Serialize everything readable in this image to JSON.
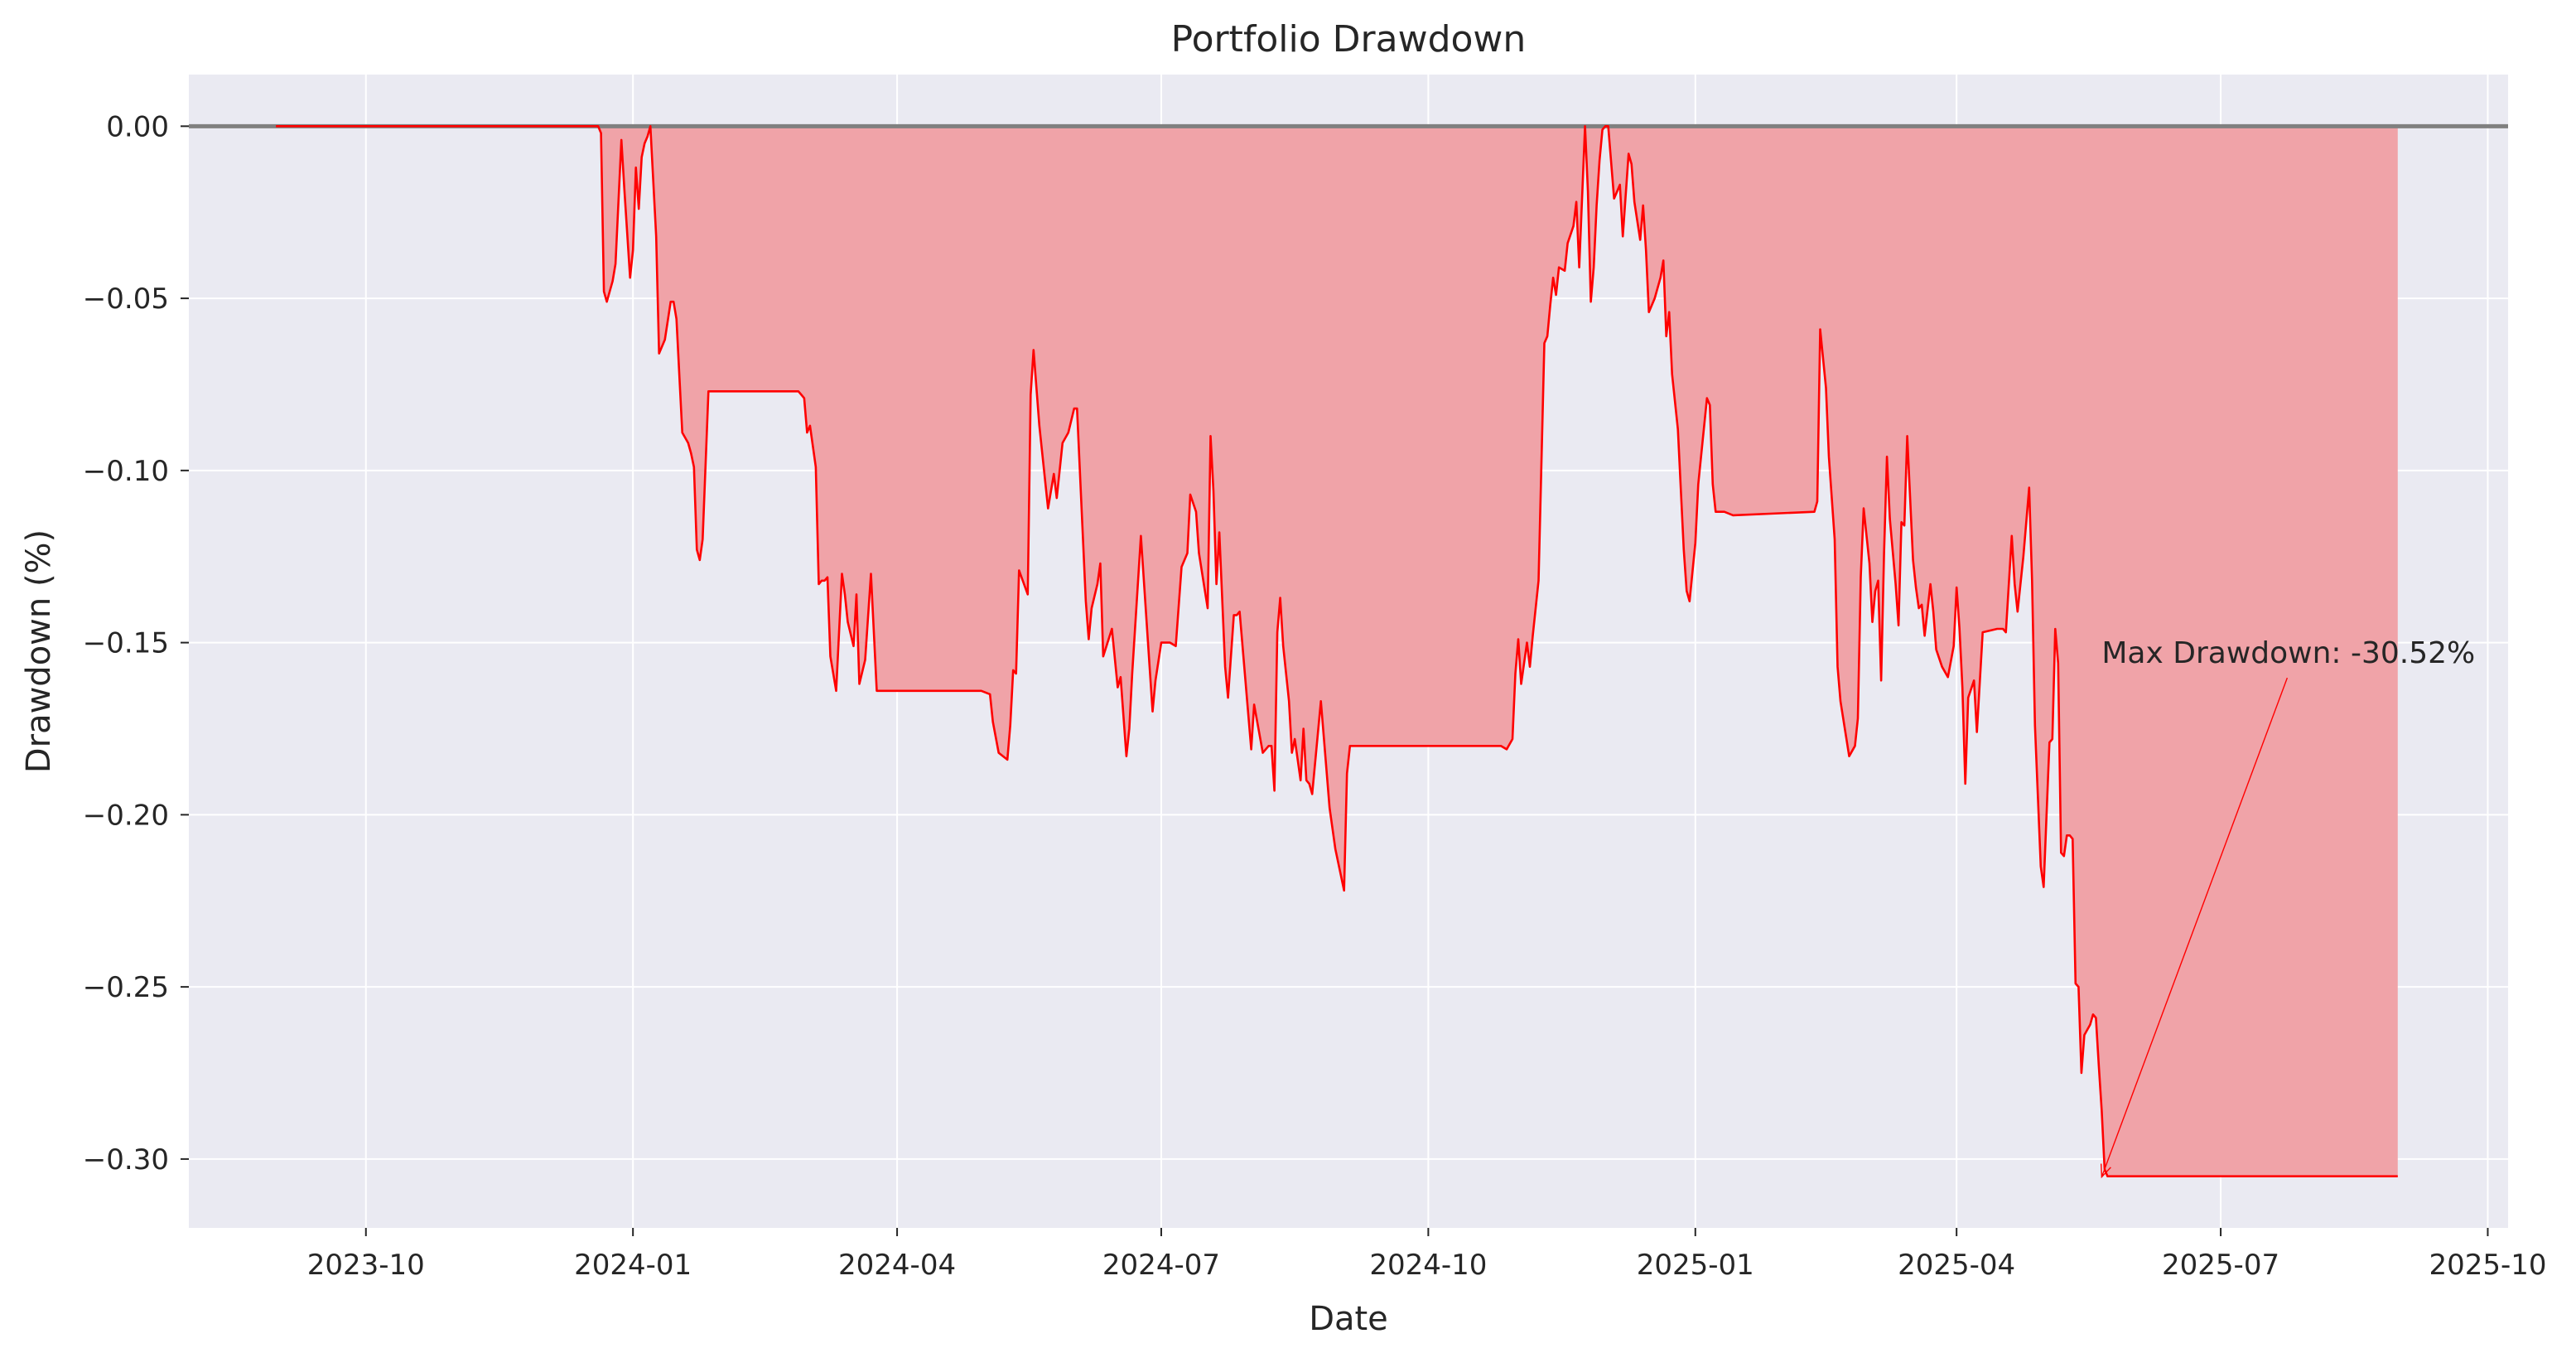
{
  "chart_data": {
    "type": "area",
    "title": "Portfolio Drawdown",
    "xlabel": "Date",
    "ylabel": "Drawdown (%)",
    "x_ticks": [
      "2023-10",
      "2024-01",
      "2024-04",
      "2024-07",
      "2024-10",
      "2025-01",
      "2025-04",
      "2025-07",
      "2025-10"
    ],
    "y_ticks": [
      "0.00",
      "−0.05",
      "−0.10",
      "−0.15",
      "−0.20",
      "−0.25",
      "−0.30"
    ],
    "y_tick_values": [
      0.0,
      -0.05,
      -0.1,
      -0.15,
      -0.2,
      -0.25,
      -0.3
    ],
    "xlim": [
      "2023-08-01",
      "2025-10-08"
    ],
    "ylim": [
      -0.32,
      0.015
    ],
    "grid": true,
    "zero_line": 0.0,
    "colors": {
      "line": "#ff0000",
      "fill": "#f0a3a8",
      "background": "#eaeaf2",
      "zero_line": "#808080"
    },
    "series": [
      {
        "x": [
          "2023-08-31",
          "2023-12-20",
          "2023-12-21",
          "2023-12-22",
          "2023-12-23",
          "2023-12-25",
          "2023-12-26",
          "2023-12-28",
          "2023-12-29",
          "2023-12-31",
          "2024-01-01",
          "2024-01-02",
          "2024-01-03",
          "2024-01-04",
          "2024-01-05",
          "2024-01-06",
          "2024-01-07",
          "2024-01-08",
          "2024-01-09",
          "2024-01-10",
          "2024-01-11",
          "2024-01-12",
          "2024-01-14",
          "2024-01-15",
          "2024-01-16",
          "2024-01-18",
          "2024-01-20",
          "2024-01-21",
          "2024-01-22",
          "2024-01-23",
          "2024-01-24",
          "2024-01-25",
          "2024-01-27",
          "2024-02-01",
          "2024-02-25",
          "2024-02-27",
          "2024-02-28",
          "2024-02-29",
          "2024-03-01",
          "2024-03-02",
          "2024-03-04",
          "2024-03-05",
          "2024-03-06",
          "2024-03-07",
          "2024-03-08",
          "2024-03-09",
          "2024-03-11",
          "2024-03-13",
          "2024-03-14",
          "2024-03-15",
          "2024-03-17",
          "2024-03-18",
          "2024-03-19",
          "2024-03-21",
          "2024-03-23",
          "2024-03-25",
          "2024-04-29",
          "2024-04-30",
          "2024-05-03",
          "2024-05-04",
          "2024-05-06",
          "2024-05-09",
          "2024-05-10",
          "2024-05-11",
          "2024-05-12",
          "2024-05-13",
          "2024-05-16",
          "2024-05-17",
          "2024-05-18",
          "2024-05-20",
          "2024-05-23",
          "2024-05-25",
          "2024-05-26",
          "2024-05-28",
          "2024-05-30",
          "2024-06-01",
          "2024-06-02",
          "2024-06-05",
          "2024-06-06",
          "2024-06-07",
          "2024-06-09",
          "2024-06-10",
          "2024-06-11",
          "2024-06-14",
          "2024-06-16",
          "2024-06-17",
          "2024-06-19",
          "2024-06-20",
          "2024-06-21",
          "2024-06-24",
          "2024-06-28",
          "2024-06-29",
          "2024-07-01",
          "2024-07-03",
          "2024-07-04",
          "2024-07-06",
          "2024-07-08",
          "2024-07-10",
          "2024-07-11",
          "2024-07-13",
          "2024-07-14",
          "2024-07-17",
          "2024-07-18",
          "2024-07-19",
          "2024-07-20",
          "2024-07-21",
          "2024-07-23",
          "2024-07-24",
          "2024-07-26",
          "2024-07-27",
          "2024-07-28",
          "2024-08-01",
          "2024-08-02",
          "2024-08-05",
          "2024-08-06",
          "2024-08-07",
          "2024-08-08",
          "2024-08-09",
          "2024-08-10",
          "2024-08-11",
          "2024-08-12",
          "2024-08-14",
          "2024-08-15",
          "2024-08-16",
          "2024-08-17",
          "2024-08-18",
          "2024-08-19",
          "2024-08-20",
          "2024-08-21",
          "2024-08-22",
          "2024-08-25",
          "2024-08-28",
          "2024-08-30",
          "2024-09-02",
          "2024-09-03",
          "2024-09-04",
          "2024-10-25",
          "2024-10-26",
          "2024-10-28",
          "2024-10-30",
          "2024-10-31",
          "2024-11-01",
          "2024-11-02",
          "2024-11-04",
          "2024-11-05",
          "2024-11-06",
          "2024-11-08",
          "2024-11-10",
          "2024-11-11",
          "2024-11-12",
          "2024-11-13",
          "2024-11-14",
          "2024-11-15",
          "2024-11-17",
          "2024-11-18",
          "2024-11-20",
          "2024-11-21",
          "2024-11-22",
          "2024-11-24",
          "2024-11-25",
          "2024-11-26",
          "2024-11-27",
          "2024-11-28",
          "2024-11-29",
          "2024-11-30",
          "2024-12-01",
          "2024-12-02",
          "2024-12-04",
          "2024-12-06",
          "2024-12-07",
          "2024-12-09",
          "2024-12-10",
          "2024-12-11",
          "2024-12-13",
          "2024-12-14",
          "2024-12-15",
          "2024-12-16",
          "2024-12-18",
          "2024-12-20",
          "2024-12-21",
          "2024-12-22",
          "2024-12-23",
          "2024-12-24",
          "2024-12-26",
          "2024-12-28",
          "2024-12-29",
          "2024-12-30",
          "2025-01-01",
          "2025-01-02",
          "2025-01-05",
          "2025-01-06",
          "2025-01-07",
          "2025-01-08",
          "2025-01-11",
          "2025-01-14",
          "2025-02-11",
          "2025-02-12",
          "2025-02-13",
          "2025-02-15",
          "2025-02-16",
          "2025-02-18",
          "2025-02-19",
          "2025-02-20",
          "2025-02-23",
          "2025-02-25",
          "2025-02-26",
          "2025-02-27",
          "2025-02-28",
          "2025-03-02",
          "2025-03-03",
          "2025-03-04",
          "2025-03-05",
          "2025-03-06",
          "2025-03-07",
          "2025-03-08",
          "2025-03-09",
          "2025-03-11",
          "2025-03-12",
          "2025-03-13",
          "2025-03-14",
          "2025-03-15",
          "2025-03-17",
          "2025-03-18",
          "2025-03-19",
          "2025-03-20",
          "2025-03-21",
          "2025-03-23",
          "2025-03-24",
          "2025-03-25",
          "2025-03-27",
          "2025-03-29",
          "2025-03-31",
          "2025-04-01",
          "2025-04-02",
          "2025-04-03",
          "2025-04-04",
          "2025-04-05",
          "2025-04-07",
          "2025-04-08",
          "2025-04-10",
          "2025-04-15",
          "2025-04-16",
          "2025-04-17",
          "2025-04-18",
          "2025-04-20",
          "2025-04-21",
          "2025-04-22",
          "2025-04-24",
          "2025-04-26",
          "2025-04-27",
          "2025-04-28",
          "2025-04-30",
          "2025-05-01",
          "2025-05-03",
          "2025-05-04",
          "2025-05-05",
          "2025-05-06",
          "2025-05-07",
          "2025-05-08",
          "2025-05-09",
          "2025-05-10",
          "2025-05-11",
          "2025-05-12",
          "2025-05-13",
          "2025-05-14",
          "2025-05-15",
          "2025-05-17",
          "2025-05-18",
          "2025-05-19",
          "2025-05-20",
          "2025-05-21",
          "2025-05-22",
          "2025-05-23",
          "2025-08-31"
        ],
        "y": [
          0.0,
          0.0,
          -0.002,
          -0.048,
          -0.051,
          -0.045,
          -0.04,
          -0.004,
          -0.018,
          -0.044,
          -0.036,
          -0.012,
          -0.024,
          -0.009,
          -0.005,
          -0.003,
          0.0,
          -0.016,
          -0.032,
          -0.066,
          -0.064,
          -0.062,
          -0.051,
          -0.051,
          -0.056,
          -0.089,
          -0.092,
          -0.095,
          -0.099,
          -0.123,
          -0.126,
          -0.12,
          -0.077,
          -0.077,
          -0.077,
          -0.077,
          -0.078,
          -0.079,
          -0.089,
          -0.087,
          -0.099,
          -0.133,
          -0.132,
          -0.132,
          -0.131,
          -0.154,
          -0.164,
          -0.13,
          -0.136,
          -0.144,
          -0.151,
          -0.136,
          -0.162,
          -0.155,
          -0.13,
          -0.164,
          -0.164,
          -0.164,
          -0.165,
          -0.173,
          -0.182,
          -0.184,
          -0.174,
          -0.158,
          -0.159,
          -0.129,
          -0.136,
          -0.078,
          -0.065,
          -0.087,
          -0.111,
          -0.101,
          -0.108,
          -0.092,
          -0.089,
          -0.082,
          -0.082,
          -0.138,
          -0.149,
          -0.14,
          -0.133,
          -0.127,
          -0.154,
          -0.146,
          -0.163,
          -0.16,
          -0.183,
          -0.175,
          -0.159,
          -0.119,
          -0.17,
          -0.161,
          -0.15,
          -0.15,
          -0.15,
          -0.151,
          -0.128,
          -0.124,
          -0.107,
          -0.112,
          -0.124,
          -0.14,
          -0.09,
          -0.106,
          -0.133,
          -0.118,
          -0.157,
          -0.166,
          -0.142,
          -0.142,
          -0.141,
          -0.181,
          -0.168,
          -0.182,
          -0.181,
          -0.18,
          -0.18,
          -0.193,
          -0.147,
          -0.137,
          -0.151,
          -0.167,
          -0.182,
          -0.178,
          -0.184,
          -0.19,
          -0.175,
          -0.19,
          -0.191,
          -0.194,
          -0.167,
          -0.198,
          -0.21,
          -0.222,
          -0.188,
          -0.18,
          -0.18,
          -0.18,
          -0.181,
          -0.178,
          -0.159,
          -0.149,
          -0.162,
          -0.15,
          -0.157,
          -0.148,
          -0.132,
          -0.063,
          -0.061,
          -0.052,
          -0.044,
          -0.049,
          -0.041,
          -0.042,
          -0.034,
          -0.029,
          -0.022,
          -0.041,
          0.0,
          -0.019,
          -0.051,
          -0.041,
          -0.023,
          -0.01,
          -0.001,
          0.0,
          0.0,
          -0.021,
          -0.017,
          -0.032,
          -0.008,
          -0.011,
          -0.022,
          -0.033,
          -0.023,
          -0.036,
          -0.054,
          -0.05,
          -0.044,
          -0.039,
          -0.061,
          -0.054,
          -0.072,
          -0.088,
          -0.123,
          -0.135,
          -0.138,
          -0.121,
          -0.104,
          -0.079,
          -0.081,
          -0.104,
          -0.112,
          -0.112,
          -0.113,
          -0.112,
          -0.109,
          -0.059,
          -0.076,
          -0.096,
          -0.12,
          -0.157,
          -0.167,
          -0.183,
          -0.18,
          -0.172,
          -0.131,
          -0.111,
          -0.127,
          -0.144,
          -0.135,
          -0.132,
          -0.161,
          -0.124,
          -0.096,
          -0.114,
          -0.133,
          -0.145,
          -0.115,
          -0.116,
          -0.09,
          -0.126,
          -0.134,
          -0.14,
          -0.139,
          -0.148,
          -0.133,
          -0.141,
          -0.152,
          -0.157,
          -0.16,
          -0.151,
          -0.134,
          -0.146,
          -0.163,
          -0.191,
          -0.166,
          -0.161,
          -0.176,
          -0.147,
          -0.146,
          -0.146,
          -0.146,
          -0.147,
          -0.119,
          -0.133,
          -0.141,
          -0.125,
          -0.105,
          -0.132,
          -0.174,
          -0.215,
          -0.221,
          -0.179,
          -0.178,
          -0.146,
          -0.156,
          -0.211,
          -0.212,
          -0.206,
          -0.206,
          -0.207,
          -0.249,
          -0.25,
          -0.275,
          -0.264,
          -0.261,
          -0.258,
          -0.259,
          -0.273,
          -0.286,
          -0.303,
          -0.305,
          -0.305
        ]
      }
    ],
    "annotations": [
      {
        "text": "Max Drawdown: -30.52%",
        "point": [
          "2025-05-21",
          -0.3052
        ],
        "text_at": [
          "2025-05-21",
          -0.153
        ]
      }
    ]
  }
}
